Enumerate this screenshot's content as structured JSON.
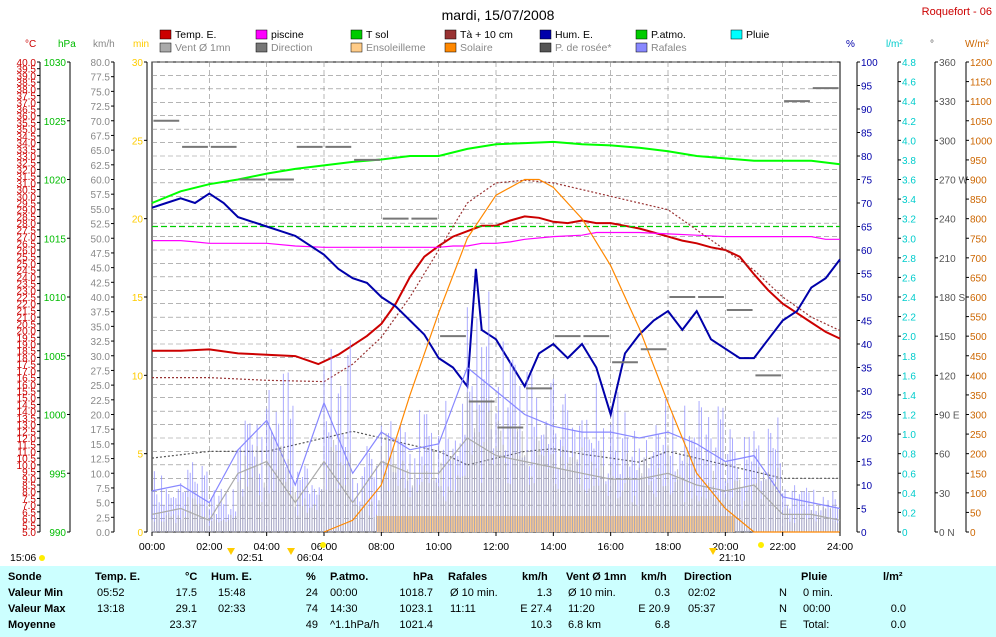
{
  "chart_data": {
    "type": "line",
    "title": "mardi, 15/07/2008",
    "station": "Roquefort - 06",
    "x_ticks": [
      "00:00",
      "02:00",
      "04:00",
      "06:00",
      "08:00",
      "10:00",
      "12:00",
      "14:00",
      "16:00",
      "18:00",
      "20:00",
      "22:00",
      "24:00"
    ],
    "xlim": [
      0,
      24
    ],
    "events": {
      "day_start": "15:06",
      "sunrise": "02:51",
      "sun_up": "06:04",
      "sunset": "21:10"
    },
    "legend": [
      {
        "label": "Temp. E.",
        "color": "#cc0000"
      },
      {
        "label": "piscine",
        "color": "#ff00ff"
      },
      {
        "label": "T sol",
        "color": "#00cc00"
      },
      {
        "label": "Tà + 10 cm",
        "color": "#993333"
      },
      {
        "label": "Hum. E.",
        "color": "#0000aa"
      },
      {
        "label": "P.atmo.",
        "color": "#00cc00"
      },
      {
        "label": "Pluie",
        "color": "#00ffff"
      },
      {
        "label": "Vent Ø 1mn",
        "color": "#aaaaaa"
      },
      {
        "label": "Direction",
        "color": "#777777"
      },
      {
        "label": "Ensoleilleme",
        "color": "#ffcc88"
      },
      {
        "label": "Solaire",
        "color": "#ff8800"
      },
      {
        "label": "P. de rosée*",
        "color": "#555555"
      },
      {
        "label": "Rafales",
        "color": "#8888ff"
      }
    ],
    "axes": [
      {
        "unit": "°C",
        "color": "#cc0000",
        "min": 5,
        "max": 40,
        "step": 0.5,
        "label_step": 1
      },
      {
        "unit": "hPa",
        "color": "#00cc00",
        "min": 990,
        "max": 1030,
        "step": 5,
        "label_step": 5
      },
      {
        "unit": "km/h",
        "color": "#888888",
        "min": 0,
        "max": 80,
        "step": 2.5,
        "label_step": 2.5
      },
      {
        "unit": "min",
        "color": "#ffcc00",
        "min": 0,
        "max": 30,
        "step": 5,
        "label_step": 5
      },
      {
        "unit": "%",
        "color": "#0000aa",
        "min": 0,
        "max": 100,
        "step": 5,
        "label_step": 5
      },
      {
        "unit": "l/m²",
        "color": "#00cccc",
        "min": 0,
        "max": 4.8,
        "step": 0.2,
        "label_step": 0.2
      },
      {
        "unit": "°",
        "color": "#555555",
        "min": 0,
        "max": 360,
        "step": 30,
        "label_step": 30
      },
      {
        "unit": "W/m²",
        "color": "#cc6600",
        "min": 0,
        "max": 1200,
        "step": 50,
        "label_step": 50
      }
    ],
    "direction_labels": {
      "N": 0,
      "E": 90,
      "S": 180,
      "W": 270
    },
    "series": [
      {
        "name": "Temp. E.",
        "axis": "°C",
        "color": "#cc0000",
        "x": [
          0,
          1,
          2,
          3,
          4,
          5,
          5.8,
          6.5,
          7,
          7.5,
          8,
          8.5,
          9,
          9.5,
          10,
          10.5,
          11,
          11.5,
          12,
          12.5,
          13,
          13.5,
          14,
          14.5,
          15,
          15.5,
          16,
          16.5,
          17,
          17.5,
          18,
          18.5,
          19,
          19.5,
          20,
          20.5,
          21,
          21.5,
          22,
          22.5,
          23,
          23.5,
          24
        ],
        "values": [
          18.5,
          18.5,
          18.6,
          18.3,
          18.2,
          18.1,
          17.5,
          18.2,
          18.9,
          19.6,
          20.5,
          22,
          24,
          25.5,
          26.3,
          27,
          27.4,
          27.8,
          27.8,
          28.2,
          28.5,
          28.4,
          28.1,
          28,
          28.2,
          28,
          28,
          27.8,
          27.6,
          27.3,
          27,
          26.7,
          26.5,
          26.2,
          26,
          25.5,
          24.2,
          23,
          22,
          21.3,
          20.6,
          19.9,
          19.4
        ]
      },
      {
        "name": "piscine",
        "axis": "°C",
        "color": "#ff00ff",
        "x": [
          0,
          1,
          1.5,
          2,
          3,
          4,
          5,
          6,
          7,
          8,
          9,
          10,
          10.5,
          11,
          11.5,
          12,
          12.5,
          13,
          14,
          15,
          15.5,
          16,
          17,
          18,
          19,
          20,
          21,
          22,
          23,
          23.5,
          24
        ],
        "values": [
          26.7,
          26.7,
          26.6,
          26.5,
          26.5,
          26.5,
          26.3,
          26.2,
          26.2,
          26.2,
          26.2,
          26.2,
          26.3,
          26.3,
          26.5,
          26.5,
          26.6,
          26.8,
          27,
          27.1,
          27.3,
          27.3,
          27.3,
          27.2,
          27.1,
          27,
          27,
          27,
          27,
          26.8,
          26.8
        ]
      },
      {
        "name": "T sol",
        "axis": "hPa",
        "color": "#00ff00",
        "x": [
          0,
          1,
          2,
          3,
          4,
          5,
          6,
          7,
          8,
          9,
          10,
          11,
          12,
          13,
          14,
          15,
          16,
          17,
          18,
          19,
          20,
          21,
          22,
          23,
          24
        ],
        "values": [
          1018,
          1019,
          1019.6,
          1020,
          1020.5,
          1020.9,
          1021.2,
          1021.5,
          1021.7,
          1022,
          1022,
          1022.6,
          1023,
          1023.1,
          1023.2,
          1023,
          1022.9,
          1022.7,
          1022.4,
          1022,
          1021.8,
          1021.6,
          1021.6,
          1021.6,
          1021.3
        ]
      },
      {
        "name": "P.atmo.",
        "axis": "hPa",
        "color": "#00cc00",
        "x": [
          0,
          24
        ],
        "values": [
          1016,
          1016
        ]
      },
      {
        "name": "Tà + 10 cm",
        "axis": "°C",
        "color": "#993333",
        "x": [
          0,
          2,
          4,
          6,
          7,
          8,
          9,
          10,
          11,
          12,
          13,
          14,
          15,
          16,
          17,
          18,
          19,
          20,
          21,
          22,
          23,
          24
        ],
        "values": [
          16.5,
          16.5,
          16.3,
          16.2,
          17.5,
          19.5,
          22.5,
          26,
          29.5,
          31,
          31.2,
          31,
          30.5,
          30,
          29.5,
          29,
          27.5,
          26,
          24.5,
          22.5,
          21,
          20
        ]
      },
      {
        "name": "P. de rosée*",
        "axis": "°C",
        "color": "#555555",
        "x": [
          0,
          2,
          4,
          6,
          7,
          8,
          9,
          10,
          11,
          12,
          13,
          14,
          15,
          16,
          17,
          18,
          19,
          20,
          21,
          22,
          23,
          24
        ],
        "values": [
          10.5,
          11,
          11,
          12,
          12.5,
          12,
          11.5,
          11,
          10,
          10.5,
          11,
          11.2,
          10.8,
          10.5,
          10.2,
          11,
          10.5,
          10,
          9.5,
          9,
          9,
          9
        ]
      },
      {
        "name": "Hum. E.",
        "axis": "%",
        "color": "#0000aa",
        "x": [
          0,
          0.5,
          1,
          1.5,
          2,
          2.5,
          3,
          3.5,
          4,
          4.5,
          5,
          5.5,
          6,
          6.5,
          7,
          7.5,
          8,
          8.5,
          9,
          9.5,
          10,
          10.5,
          11,
          11.3,
          11.5,
          12,
          12.5,
          13,
          13.5,
          14,
          14.5,
          15,
          15.5,
          16,
          16.5,
          17,
          17.5,
          18,
          18.5,
          19,
          19.5,
          20,
          20.5,
          21,
          21.5,
          22,
          22.5,
          23,
          23.5,
          24
        ],
        "values": [
          69,
          70,
          71,
          70,
          72,
          70,
          67,
          66,
          65,
          64,
          63,
          61,
          59,
          56,
          54,
          53,
          50,
          48,
          45,
          42,
          37,
          35,
          31,
          56,
          43,
          41,
          36,
          31,
          38,
          40,
          37,
          40,
          35,
          25,
          38,
          42,
          45,
          47,
          43,
          47,
          41,
          39,
          37,
          37,
          41,
          45,
          47,
          52,
          54,
          58
        ]
      },
      {
        "name": "Rafales",
        "axis": "km/h",
        "color": "#8888ff",
        "x": [
          0,
          1,
          2,
          3,
          4,
          5,
          6,
          7,
          8,
          9,
          10,
          11,
          12,
          13,
          14,
          15,
          16,
          17,
          18,
          19,
          20,
          21,
          22,
          23,
          24
        ],
        "values": [
          7,
          8,
          5,
          14,
          19,
          8,
          22,
          10,
          17,
          14,
          15,
          28,
          24,
          20,
          18,
          17,
          17,
          16,
          17,
          15,
          12,
          13,
          6,
          5,
          4
        ]
      },
      {
        "name": "Vent Ø 1mn",
        "axis": "km/h",
        "color": "#aaaaaa",
        "x": [
          0,
          1,
          2,
          3,
          4,
          5,
          6,
          7,
          8,
          9,
          10,
          11,
          12,
          13,
          14,
          15,
          16,
          17,
          18,
          19,
          20,
          21,
          22,
          23,
          24
        ],
        "values": [
          3,
          4,
          2,
          10,
          12,
          5,
          12,
          5,
          12,
          10,
          10,
          16,
          13,
          12,
          11,
          10,
          9,
          9,
          10,
          8,
          7,
          8,
          3,
          3,
          2
        ]
      },
      {
        "name": "Solaire",
        "axis": "W/m²",
        "color": "#ff8800",
        "x": [
          6,
          7,
          8,
          9,
          10,
          11,
          12,
          13,
          13.5,
          14,
          15,
          16,
          17,
          18,
          19,
          20,
          21,
          24
        ],
        "values": [
          0,
          30,
          120,
          350,
          560,
          750,
          860,
          900,
          900,
          880,
          800,
          680,
          520,
          330,
          150,
          60,
          0,
          0
        ]
      },
      {
        "name": "Direction",
        "axis": "°",
        "color": "#777777",
        "x": [
          0.5,
          1.5,
          2.5,
          3.5,
          4.5,
          5.5,
          6.5,
          7.5,
          8.5,
          9.5,
          10.5,
          11.5,
          12.5,
          13.5,
          14.5,
          15.5,
          16.5,
          17.5,
          18.5,
          19.5,
          20.5,
          21.5,
          22.5,
          23.5
        ],
        "values": [
          315,
          295,
          295,
          270,
          270,
          295,
          295,
          285,
          240,
          240,
          150,
          100,
          80,
          110,
          150,
          150,
          130,
          140,
          180,
          180,
          170,
          120,
          330,
          340
        ]
      }
    ],
    "sunshine_band": {
      "start": "07:50",
      "end": "20:20",
      "color": "#ffcc88"
    }
  },
  "stats": {
    "headers": {
      "sonde": "Sonde",
      "temp": "Temp. E.",
      "temp_unit": "°C",
      "hum": "Hum. E.",
      "hum_unit": "%",
      "patmo": "P.atmo.",
      "patmo_unit": "hPa",
      "rafales": "Rafales",
      "rafales_unit": "km/h",
      "vent": "Vent Ø 1mn",
      "vent_unit": "km/h",
      "direction": "Direction",
      "pluie": "Pluie",
      "pluie_unit": "l/m²"
    },
    "rows": [
      {
        "label": "Valeur Min",
        "temp_t": "05:52",
        "temp_v": "17.5",
        "hum_t": "15:48",
        "hum_v": "24",
        "patmo_t": "00:00",
        "patmo_v": "1018.7",
        "raf_t": "Ø 10 min.",
        "raf_v": "1.3",
        "vent_t": "Ø 10 min.",
        "vent_v": "0.3",
        "dir_t": "02:02",
        "dir_v": "N",
        "pluie_t": "0 min.",
        "pluie_v": ""
      },
      {
        "label": "Valeur Max",
        "temp_t": "13:18",
        "temp_v": "29.1",
        "hum_t": "02:33",
        "hum_v": "74",
        "patmo_t": "14:30",
        "patmo_v": "1023.1",
        "raf_t": "11:11",
        "raf_v": "E 27.4",
        "vent_t": "11:20",
        "vent_v": "E 20.9",
        "dir_t": "05:37",
        "dir_v": "N",
        "pluie_t": "00:00",
        "pluie_v": "0.0"
      },
      {
        "label": "Moyenne",
        "temp_t": "",
        "temp_v": "23.37",
        "hum_t": "",
        "hum_v": "49",
        "patmo_t": "^1.1hPa/h",
        "patmo_v": "1021.4",
        "raf_t": "",
        "raf_v": "10.3",
        "vent_t": "6.8 km",
        "vent_v": "6.8",
        "dir_t": "",
        "dir_v": "E",
        "pluie_t": "Total:",
        "pluie_v": "0.0"
      }
    ]
  }
}
